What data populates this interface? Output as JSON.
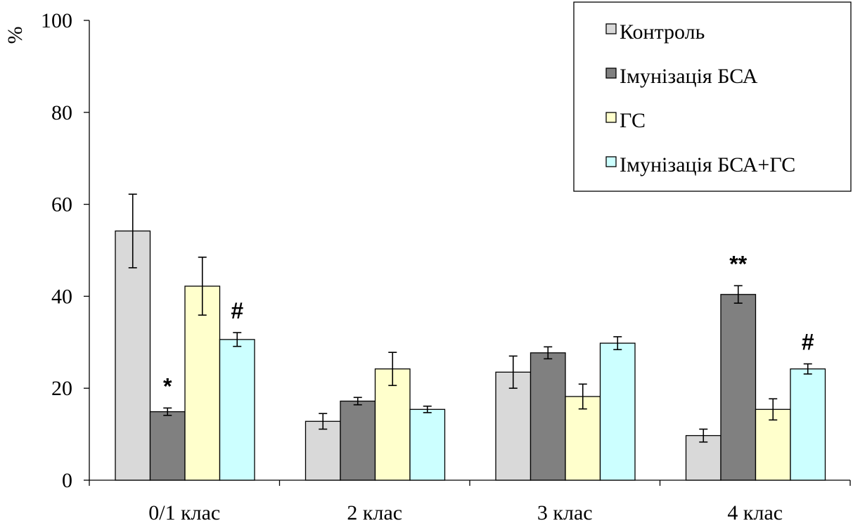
{
  "chart_data": {
    "type": "bar",
    "ylabel": "%",
    "ylim": [
      0,
      100
    ],
    "yticks": [
      "0",
      "20",
      "40",
      "60",
      "80",
      "100"
    ],
    "categories": [
      "0/1 клас",
      "2 клас",
      "3 клас",
      "4 клас"
    ],
    "series": [
      {
        "name": "Контроль",
        "color": "#d9d9d9",
        "values": [
          54.2,
          12.8,
          23.5,
          9.7
        ],
        "errors": [
          8.0,
          1.7,
          3.5,
          1.4
        ],
        "annotations": [
          "",
          "",
          "",
          ""
        ]
      },
      {
        "name": "Імунізація БСА",
        "color": "#808080",
        "values": [
          14.9,
          17.2,
          27.7,
          40.4
        ],
        "errors": [
          0.8,
          0.8,
          1.3,
          1.9
        ],
        "annotations": [
          "*",
          "",
          "",
          "**"
        ]
      },
      {
        "name": "ГС",
        "color": "#ffffcc",
        "values": [
          42.2,
          24.2,
          18.2,
          15.4
        ],
        "errors": [
          6.3,
          3.6,
          2.7,
          2.3
        ],
        "annotations": [
          "",
          "",
          "",
          ""
        ]
      },
      {
        "name": "Імунізація БСА+ГС",
        "color": "#ccffff",
        "values": [
          30.6,
          15.4,
          29.8,
          24.2
        ],
        "errors": [
          1.5,
          0.7,
          1.4,
          1.1
        ],
        "annotations": [
          "#",
          "",
          "",
          "#"
        ]
      }
    ],
    "legend_position": "top-right",
    "grid": false
  }
}
